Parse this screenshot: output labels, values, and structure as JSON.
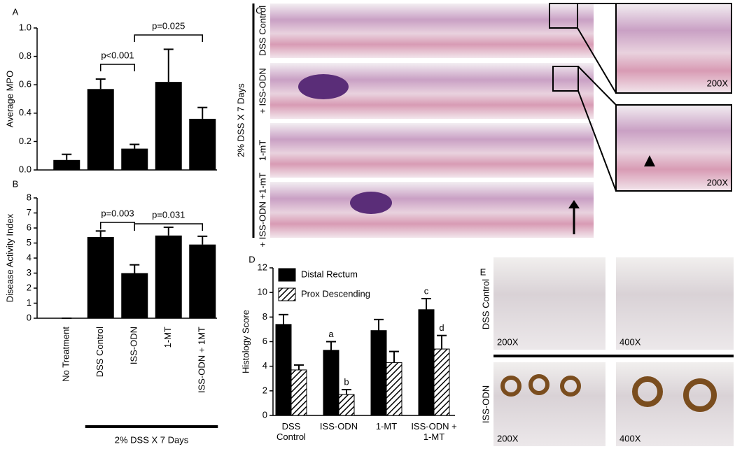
{
  "chart_data": [
    {
      "type": "bar",
      "panel": "A",
      "ylabel": "Average MPO",
      "values": [
        0.07,
        0.57,
        0.15,
        0.62,
        0.36
      ],
      "errors": [
        0.04,
        0.07,
        0.03,
        0.23,
        0.08
      ],
      "color": "#000000",
      "ylim": [
        0,
        1
      ],
      "yticks": [
        {
          "value": 0,
          "label": "0.0"
        },
        {
          "value": 0.2,
          "label": "0.2"
        },
        {
          "value": 0.4,
          "label": "0.4"
        },
        {
          "value": 0.6,
          "label": "0.6"
        },
        {
          "value": 0.8,
          "label": "0.8"
        },
        {
          "value": 1,
          "label": "1.0"
        }
      ],
      "annotations": [
        "p<0.001",
        "p=0.025"
      ]
    },
    {
      "type": "bar",
      "panel": "B",
      "ylabel": "Disease Activity Index",
      "categories": [
        "No Treatment",
        "DSS Control",
        "ISS-ODN",
        "1-MT",
        "ISS-ODN + 1MT"
      ],
      "values": [
        0,
        5.4,
        3.0,
        5.5,
        4.9
      ],
      "errors": [
        0,
        0.4,
        0.55,
        0.55,
        0.55
      ],
      "color": "#000000",
      "ylim": [
        0,
        8
      ],
      "yticks": [
        0,
        1,
        2,
        3,
        4,
        5,
        6,
        7,
        8
      ],
      "annotations": [
        "p=0.003",
        "p=0.031"
      ],
      "footer": "2% DSS X 7 Days"
    },
    {
      "type": "grouped-bar",
      "panel": "D",
      "ylabel": "Histology Score",
      "categories": [
        "DSS Control",
        "ISS-ODN",
        "1-MT",
        "ISS-ODN + 1-MT"
      ],
      "series": [
        {
          "name": "Distal Rectum",
          "color": "#000000",
          "values": [
            7.4,
            5.3,
            6.9,
            8.6
          ],
          "errors": [
            0.8,
            0.7,
            0.9,
            0.9
          ]
        },
        {
          "name": "Prox Descending",
          "color": "hatch",
          "values": [
            3.7,
            1.7,
            4.3,
            5.4
          ],
          "errors": [
            0.4,
            0.4,
            0.9,
            1.1
          ]
        }
      ],
      "ylim": [
        0,
        12
      ],
      "yticks": [
        0,
        2,
        4,
        6,
        8,
        10,
        12
      ],
      "annotations": [
        "a",
        "b",
        "c",
        "d"
      ]
    }
  ],
  "panel_c": {
    "label": "C",
    "condition": "2% DSS X 7 Days",
    "rows": [
      "DSS Control",
      "+ ISS-ODN",
      "1-mT",
      "+ ISS-ODN +1-mT"
    ],
    "insets": [
      "200X",
      "200X"
    ]
  },
  "panel_e": {
    "label": "E",
    "rows": [
      "DSS Control",
      "ISS-ODN"
    ],
    "magnifications": [
      [
        "200X",
        "400X"
      ],
      [
        "200X",
        "400X"
      ]
    ]
  }
}
